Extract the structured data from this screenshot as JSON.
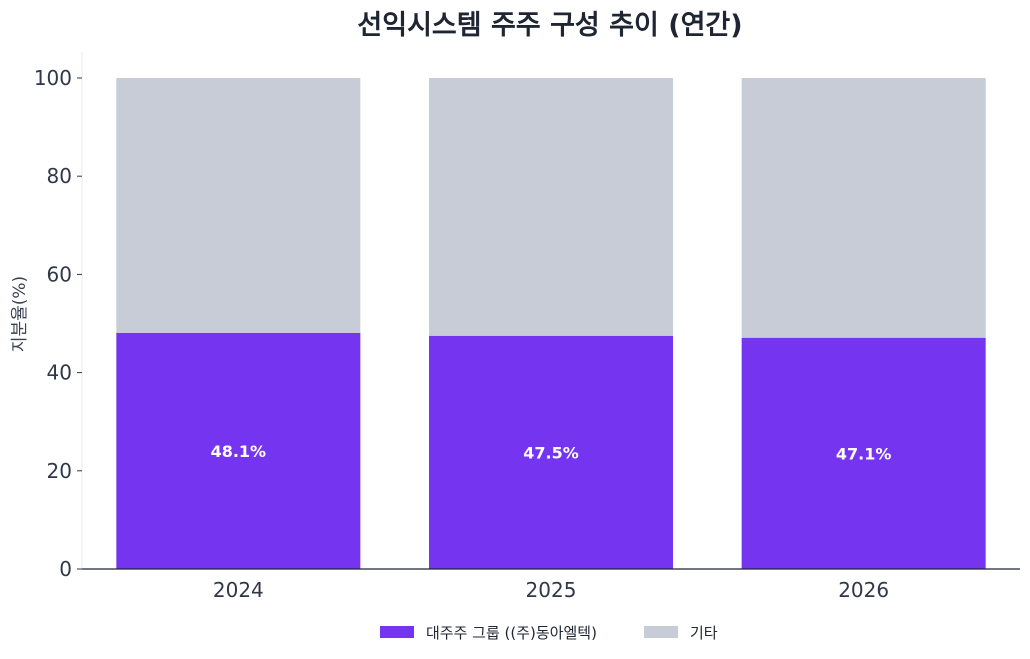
{
  "chart_data": {
    "type": "bar",
    "stacked": true,
    "title": "선익시스템 주주 구성 추이 (연간)",
    "xlabel": "",
    "ylabel": "지분율(%)",
    "categories": [
      "2024",
      "2025",
      "2026"
    ],
    "series": [
      {
        "name": "대주주 그룹 ((주)동아엘텍)",
        "values": [
          48.1,
          47.5,
          47.1
        ],
        "color": "#7434f0",
        "labels": [
          "48.1%",
          "47.5%",
          "47.1%"
        ]
      },
      {
        "name": "기타",
        "values": [
          51.9,
          52.5,
          52.9
        ],
        "color": "#c8ccd6"
      }
    ],
    "ylim": [
      0,
      100
    ],
    "yticks": [
      0,
      20,
      40,
      60,
      80,
      100
    ],
    "grid": false,
    "legend": "bottom-center"
  }
}
